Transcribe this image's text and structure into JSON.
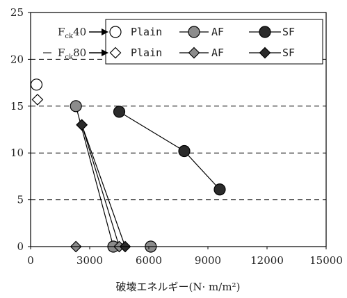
{
  "chart_data": {
    "type": "scatter",
    "title": "",
    "xlabel": "破壊エネルギー(N· m/m²)",
    "ylabel": "",
    "xlim": [
      0,
      15000
    ],
    "ylim": [
      0,
      25
    ],
    "x_ticks": [
      "0",
      "3000",
      "6000",
      "9000",
      "12000",
      "15000"
    ],
    "y_ticks": [
      "0",
      "5",
      "10",
      "15",
      "20",
      "25"
    ],
    "grid": "dashed horizontal lines at 5, 10, 15, 20",
    "legend_position": "top-right",
    "legend_groups": [
      {
        "main": "F",
        "sub": "ck",
        "value": "40",
        "marker": "circle",
        "labels": [
          "Plain",
          "AF",
          "SF"
        ]
      },
      {
        "main": "F",
        "sub": "ck",
        "value": "80",
        "marker": "diamond",
        "labels": [
          "Plain",
          "AF",
          "SF"
        ]
      }
    ],
    "series": [
      {
        "group": "Fck40",
        "name": "Plain",
        "marker": "circle",
        "fill": "#ffffff",
        "connected": false,
        "points": [
          [
            300,
            17.3
          ]
        ]
      },
      {
        "group": "Fck40",
        "name": "AF",
        "marker": "circle",
        "fill": "#8c8c8c",
        "connected": true,
        "points": [
          [
            2300,
            15.0
          ],
          [
            4200,
            0.0
          ]
        ]
      },
      {
        "group": "Fck40",
        "name": "AF",
        "marker": "circle",
        "fill": "#8c8c8c",
        "connected": false,
        "points": [
          [
            6100,
            0.0
          ]
        ]
      },
      {
        "group": "Fck40",
        "name": "SF",
        "marker": "circle",
        "fill": "#2b2b2b",
        "connected": true,
        "points": [
          [
            4500,
            14.4
          ],
          [
            7800,
            10.2
          ],
          [
            9600,
            6.1
          ]
        ]
      },
      {
        "group": "Fck80",
        "name": "Plain",
        "marker": "diamond",
        "fill": "#ffffff",
        "connected": false,
        "points": [
          [
            350,
            15.7
          ]
        ]
      },
      {
        "group": "Fck80",
        "name": "AF",
        "marker": "diamond",
        "fill": "#8c8c8c",
        "connected": false,
        "points": [
          [
            2300,
            0.0
          ]
        ]
      },
      {
        "group": "Fck80",
        "name": "AF",
        "marker": "diamond",
        "fill": "#8c8c8c",
        "connected": true,
        "points": [
          [
            2600,
            13.0
          ],
          [
            4500,
            0.0
          ]
        ]
      },
      {
        "group": "Fck80",
        "name": "SF",
        "marker": "diamond",
        "fill": "#2b2b2b",
        "connected": true,
        "points": [
          [
            2600,
            13.0
          ],
          [
            4800,
            0.0
          ]
        ]
      }
    ]
  }
}
